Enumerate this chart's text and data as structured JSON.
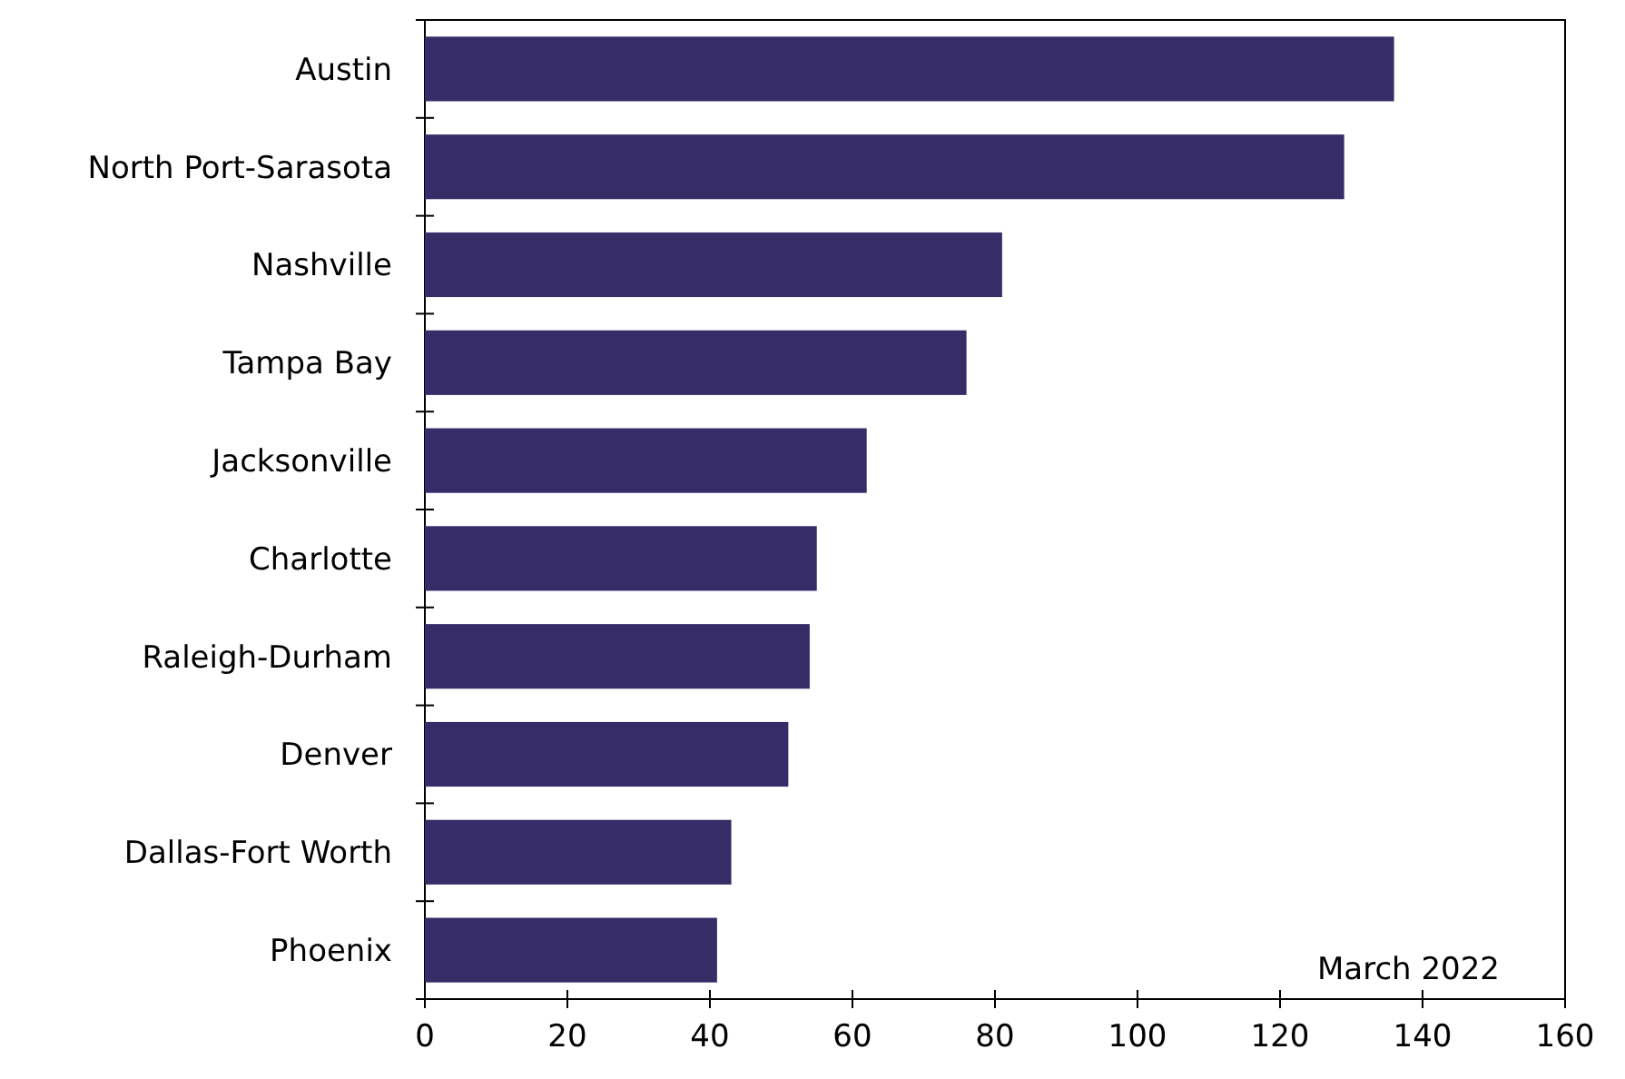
{
  "chart_data": {
    "type": "bar",
    "orientation": "horizontal",
    "categories": [
      "Austin",
      "North Port-Sarasota",
      "Nashville",
      "Tampa Bay",
      "Jacksonville",
      "Charlotte",
      "Raleigh-Durham",
      "Denver",
      "Dallas-Fort Worth",
      "Phoenix"
    ],
    "values": [
      136,
      129,
      81,
      76,
      62,
      55,
      54,
      51,
      43,
      41
    ],
    "color": "#352c68",
    "xlim": [
      0,
      160
    ],
    "xticks": [
      0,
      20,
      40,
      60,
      80,
      100,
      120,
      140,
      160
    ],
    "grid": false,
    "annotations": [
      "March 2022"
    ]
  }
}
